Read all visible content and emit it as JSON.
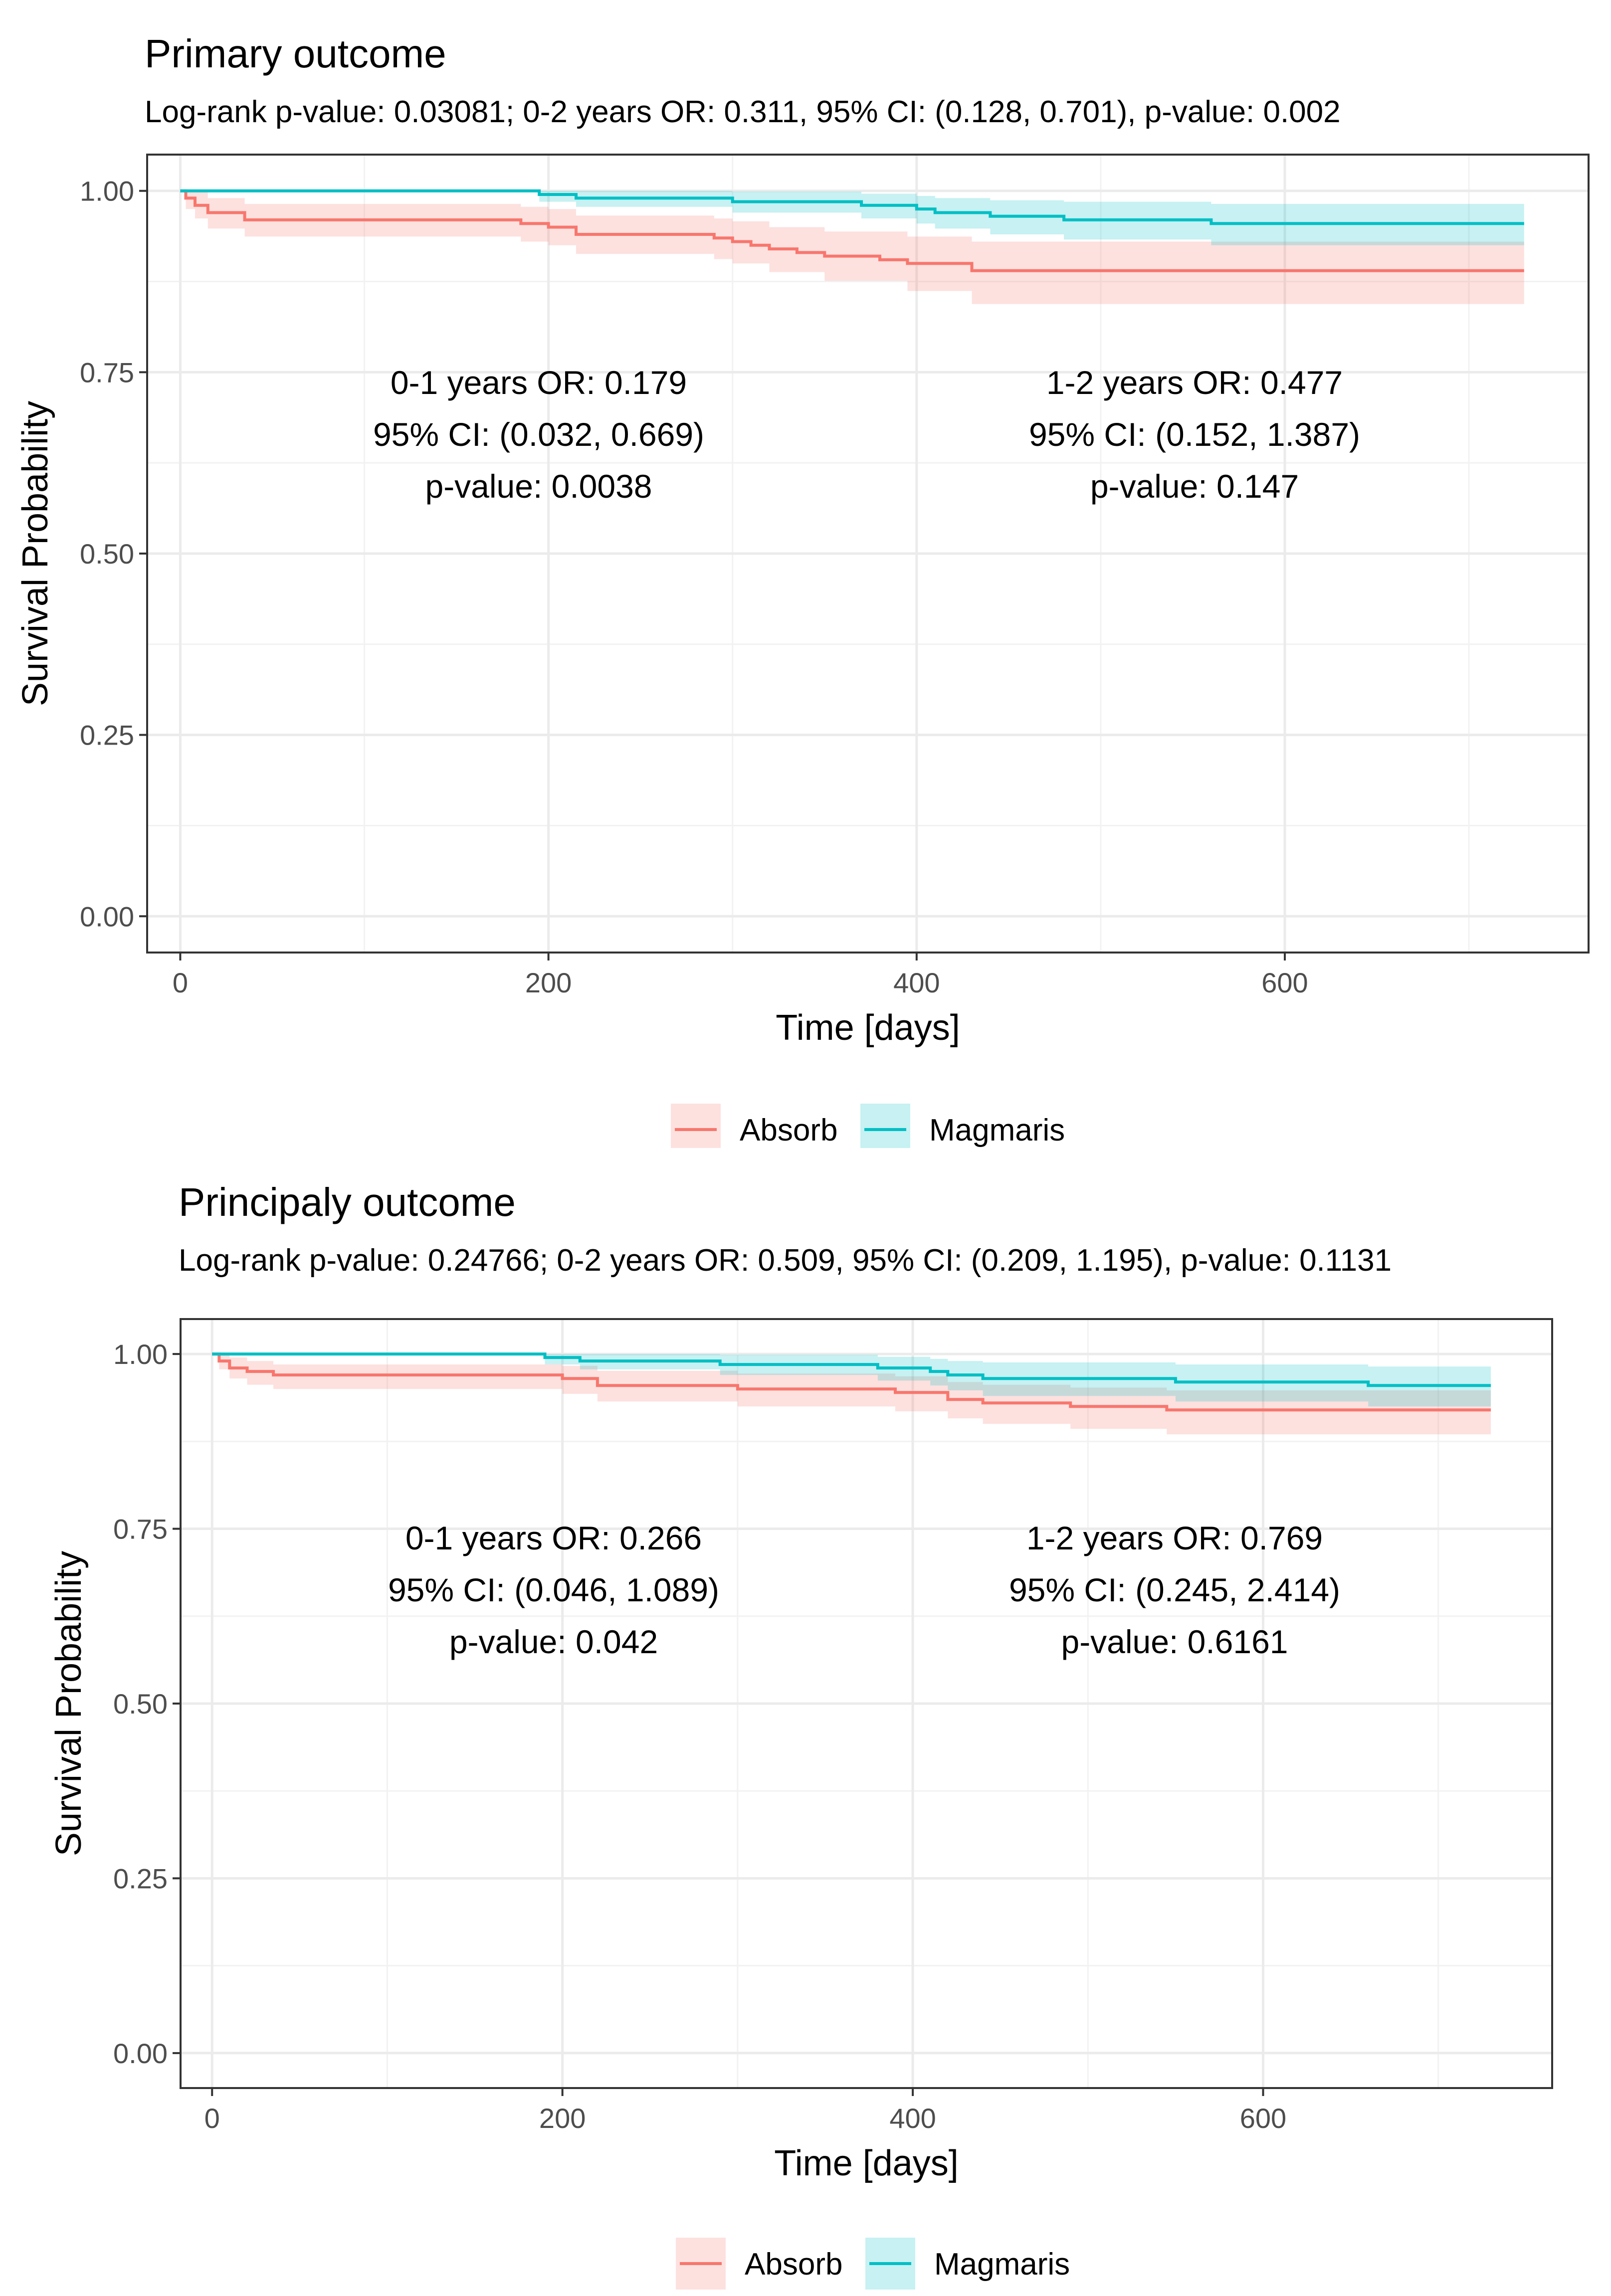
{
  "chart_data": [
    {
      "type": "line",
      "title": "Primary outcome",
      "subtitle": "Log-rank p-value: 0.03081;    0-2 years OR: 0.311, 95% CI: (0.128, 0.701), p-value: 0.002",
      "xlabel": "Time [days]",
      "ylabel": "Survival Probability",
      "xlim": [
        -18,
        765
      ],
      "ylim": [
        -0.05,
        1.05
      ],
      "x_ticks": [
        0,
        200,
        400,
        600
      ],
      "x_tick_labels": [
        "0",
        "200",
        "400",
        "600"
      ],
      "y_ticks": [
        0,
        0.25,
        0.5,
        0.75,
        1
      ],
      "y_tick_labels": [
        "0.00",
        "0.25",
        "0.50",
        "0.75",
        "1.00"
      ],
      "grid": true,
      "legend": {
        "position": "bottom",
        "entries": [
          "Absorb",
          "Magmaris"
        ]
      },
      "annotations": [
        {
          "lines": [
            "0-1 years OR: 0.179",
            "95% CI: (0.032, 0.669)",
            "p-value: 0.0038"
          ]
        },
        {
          "lines": [
            "1-2 years OR: 0.477",
            "95% CI: (0.152, 1.387)",
            "p-value: 0.147"
          ]
        }
      ],
      "series": [
        {
          "name": "Absorb",
          "color": "#F8766D",
          "band_color": "#F8766D",
          "steps": [
            [
              0,
              1.0
            ],
            [
              3,
              0.99
            ],
            [
              8,
              0.98
            ],
            [
              15,
              0.97
            ],
            [
              35,
              0.96
            ],
            [
              185,
              0.955
            ],
            [
              200,
              0.95
            ],
            [
              215,
              0.94
            ],
            [
              240,
              0.94
            ],
            [
              290,
              0.935
            ],
            [
              300,
              0.93
            ],
            [
              310,
              0.925
            ],
            [
              320,
              0.92
            ],
            [
              335,
              0.915
            ],
            [
              350,
              0.91
            ],
            [
              380,
              0.905
            ],
            [
              395,
              0.9
            ],
            [
              430,
              0.89
            ],
            [
              730,
              0.89
            ]
          ],
          "lower": [
            [
              0,
              1.0
            ],
            [
              3,
              0.975
            ],
            [
              8,
              0.962
            ],
            [
              15,
              0.948
            ],
            [
              35,
              0.937
            ],
            [
              185,
              0.93
            ],
            [
              200,
              0.925
            ],
            [
              215,
              0.913
            ],
            [
              290,
              0.906
            ],
            [
              300,
              0.9
            ],
            [
              320,
              0.888
            ],
            [
              350,
              0.876
            ],
            [
              395,
              0.862
            ],
            [
              430,
              0.844
            ],
            [
              730,
              0.844
            ]
          ],
          "upper": [
            [
              0,
              1.0
            ],
            [
              3,
              1.0
            ],
            [
              8,
              0.998
            ],
            [
              15,
              0.99
            ],
            [
              35,
              0.982
            ],
            [
              185,
              0.978
            ],
            [
              200,
              0.975
            ],
            [
              215,
              0.966
            ],
            [
              290,
              0.962
            ],
            [
              300,
              0.958
            ],
            [
              320,
              0.95
            ],
            [
              350,
              0.944
            ],
            [
              395,
              0.937
            ],
            [
              430,
              0.93
            ],
            [
              730,
              0.93
            ]
          ]
        },
        {
          "name": "Magmaris",
          "color": "#00BFC4",
          "band_color": "#00BFC4",
          "steps": [
            [
              0,
              1.0
            ],
            [
              195,
              0.995
            ],
            [
              215,
              0.99
            ],
            [
              300,
              0.985
            ],
            [
              370,
              0.98
            ],
            [
              400,
              0.975
            ],
            [
              410,
              0.97
            ],
            [
              440,
              0.965
            ],
            [
              480,
              0.96
            ],
            [
              560,
              0.955
            ],
            [
              730,
              0.955
            ]
          ],
          "lower": [
            [
              0,
              1.0
            ],
            [
              195,
              0.985
            ],
            [
              215,
              0.978
            ],
            [
              300,
              0.97
            ],
            [
              370,
              0.962
            ],
            [
              400,
              0.955
            ],
            [
              410,
              0.948
            ],
            [
              440,
              0.94
            ],
            [
              480,
              0.933
            ],
            [
              560,
              0.925
            ],
            [
              730,
              0.925
            ]
          ],
          "upper": [
            [
              0,
              1.0
            ],
            [
              195,
              1.0
            ],
            [
              215,
              1.0
            ],
            [
              300,
              0.999
            ],
            [
              370,
              0.996
            ],
            [
              400,
              0.993
            ],
            [
              410,
              0.99
            ],
            [
              440,
              0.987
            ],
            [
              480,
              0.985
            ],
            [
              560,
              0.982
            ],
            [
              730,
              0.982
            ]
          ]
        }
      ]
    },
    {
      "type": "line",
      "title": "Principaly outcome",
      "subtitle": "Log-rank p-value: 0.24766;    0-2 years OR: 0.509, 95% CI: (0.209, 1.195), p-value: 0.1131",
      "xlabel": "Time [days]",
      "ylabel": "Survival Probability",
      "xlim": [
        -18,
        765
      ],
      "ylim": [
        -0.05,
        1.05
      ],
      "x_ticks": [
        0,
        200,
        400,
        600
      ],
      "x_tick_labels": [
        "0",
        "200",
        "400",
        "600"
      ],
      "y_ticks": [
        0,
        0.25,
        0.5,
        0.75,
        1
      ],
      "y_tick_labels": [
        "0.00",
        "0.25",
        "0.50",
        "0.75",
        "1.00"
      ],
      "grid": true,
      "legend": {
        "position": "bottom",
        "entries": [
          "Absorb",
          "Magmaris"
        ]
      },
      "annotations": [
        {
          "lines": [
            "0-1 years OR: 0.266",
            "95% CI: (0.046, 1.089)",
            "p-value: 0.042"
          ]
        },
        {
          "lines": [
            "1-2 years OR: 0.769",
            "95% CI: (0.245, 2.414)",
            "p-value: 0.6161"
          ]
        }
      ],
      "series": [
        {
          "name": "Absorb",
          "color": "#F8766D",
          "band_color": "#F8766D",
          "steps": [
            [
              0,
              1.0
            ],
            [
              4,
              0.99
            ],
            [
              10,
              0.98
            ],
            [
              20,
              0.975
            ],
            [
              35,
              0.97
            ],
            [
              200,
              0.965
            ],
            [
              220,
              0.955
            ],
            [
              300,
              0.95
            ],
            [
              390,
              0.945
            ],
            [
              420,
              0.935
            ],
            [
              440,
              0.93
            ],
            [
              490,
              0.925
            ],
            [
              545,
              0.92
            ],
            [
              730,
              0.92
            ]
          ],
          "lower": [
            [
              0,
              1.0
            ],
            [
              4,
              0.978
            ],
            [
              10,
              0.965
            ],
            [
              20,
              0.956
            ],
            [
              35,
              0.95
            ],
            [
              200,
              0.943
            ],
            [
              220,
              0.932
            ],
            [
              300,
              0.925
            ],
            [
              390,
              0.918
            ],
            [
              420,
              0.908
            ],
            [
              440,
              0.9
            ],
            [
              490,
              0.893
            ],
            [
              545,
              0.885
            ],
            [
              730,
              0.885
            ]
          ],
          "upper": [
            [
              0,
              1.0
            ],
            [
              4,
              1.0
            ],
            [
              10,
              0.995
            ],
            [
              20,
              0.99
            ],
            [
              35,
              0.985
            ],
            [
              200,
              0.983
            ],
            [
              220,
              0.976
            ],
            [
              300,
              0.972
            ],
            [
              390,
              0.968
            ],
            [
              420,
              0.96
            ],
            [
              440,
              0.956
            ],
            [
              490,
              0.952
            ],
            [
              545,
              0.948
            ],
            [
              730,
              0.948
            ]
          ]
        },
        {
          "name": "Magmaris",
          "color": "#00BFC4",
          "band_color": "#00BFC4",
          "steps": [
            [
              0,
              1.0
            ],
            [
              190,
              0.995
            ],
            [
              210,
              0.99
            ],
            [
              290,
              0.985
            ],
            [
              380,
              0.98
            ],
            [
              410,
              0.975
            ],
            [
              420,
              0.97
            ],
            [
              440,
              0.965
            ],
            [
              550,
              0.96
            ],
            [
              660,
              0.955
            ],
            [
              730,
              0.955
            ]
          ],
          "lower": [
            [
              0,
              1.0
            ],
            [
              190,
              0.985
            ],
            [
              210,
              0.978
            ],
            [
              290,
              0.97
            ],
            [
              380,
              0.962
            ],
            [
              410,
              0.955
            ],
            [
              420,
              0.948
            ],
            [
              440,
              0.94
            ],
            [
              550,
              0.932
            ],
            [
              660,
              0.925
            ],
            [
              730,
              0.925
            ]
          ],
          "upper": [
            [
              0,
              1.0
            ],
            [
              190,
              1.0
            ],
            [
              210,
              1.0
            ],
            [
              290,
              0.999
            ],
            [
              380,
              0.996
            ],
            [
              410,
              0.993
            ],
            [
              420,
              0.99
            ],
            [
              440,
              0.988
            ],
            [
              550,
              0.985
            ],
            [
              660,
              0.982
            ],
            [
              730,
              0.982
            ]
          ]
        }
      ]
    }
  ]
}
